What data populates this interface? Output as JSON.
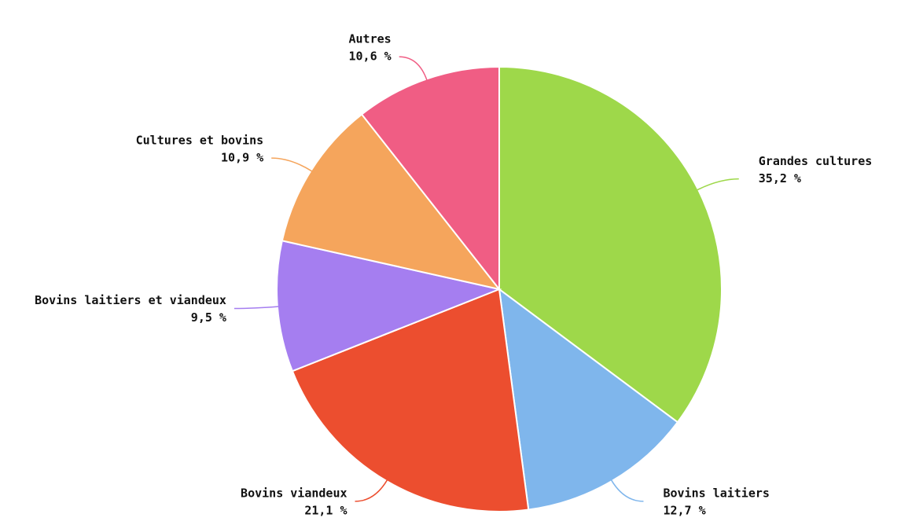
{
  "chart_data": {
    "type": "pie",
    "categories": [
      "Grandes cultures",
      "Bovins laitiers",
      "Bovins viandeux",
      "Bovins laitiers et viandeux",
      "Cultures et bovins",
      "Autres"
    ],
    "values": [
      35.2,
      12.7,
      21.1,
      9.5,
      10.9,
      10.6
    ],
    "value_labels": [
      "35,2 %",
      "12,7 %",
      "21,1 %",
      "9,5 %",
      "10,9 %",
      "10,6 %"
    ],
    "colors": [
      "#9ed84a",
      "#7fb6ec",
      "#ec4e2f",
      "#a57ef0",
      "#f5a55c",
      "#f05d84"
    ]
  }
}
